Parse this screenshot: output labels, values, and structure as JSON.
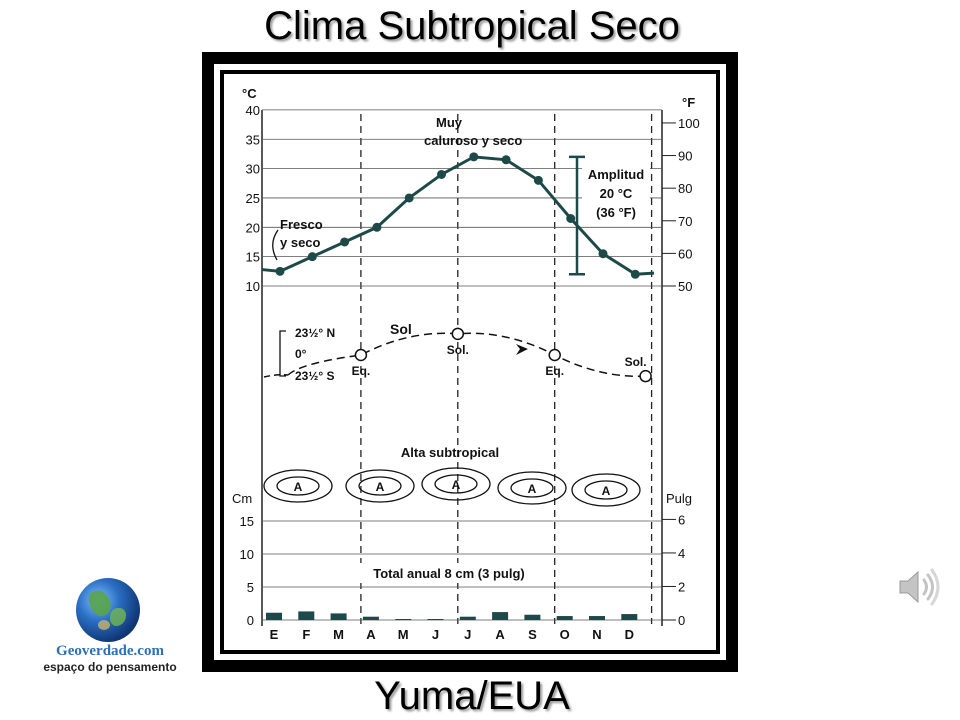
{
  "slide": {
    "title": "Clima Subtropical Seco",
    "caption": "Yuma/EUA"
  },
  "logo": {
    "name": "Geoverdade.com",
    "tagline": "espaço do pensamento"
  },
  "icons": {
    "globe": "globe-icon",
    "speaker": "speaker-icon"
  },
  "colors": {
    "line": "#1d4a48",
    "bars": "#1d4a48",
    "frame": "#000000",
    "title_shadow": "#9a9a9a"
  },
  "chart_data": {
    "type": "line",
    "months": [
      "E",
      "F",
      "M",
      "A",
      "M",
      "J",
      "J",
      "A",
      "S",
      "O",
      "N",
      "D"
    ],
    "temperature": {
      "unit": "°C",
      "alt_unit": "°F",
      "values": [
        12.5,
        15,
        17.5,
        20,
        25,
        29,
        32,
        31.5,
        28,
        21.5,
        15.5,
        12
      ],
      "ticks_c": [
        40,
        35,
        30,
        25,
        20,
        15,
        10
      ],
      "ticks_f": [
        100,
        90,
        80,
        70,
        60,
        50
      ],
      "ylim_c": [
        10,
        40
      ]
    },
    "precipitation": {
      "unit": "Cm",
      "alt_unit": "Pulg",
      "values": [
        1.1,
        1.3,
        1.0,
        0.5,
        0.1,
        0.05,
        0.5,
        1.2,
        0.8,
        0.6,
        0.6,
        0.9
      ],
      "ticks_cm": [
        15,
        10,
        5,
        0
      ],
      "ticks_in": [
        6,
        4,
        2,
        0
      ],
      "ylim_cm": [
        0,
        18
      ]
    },
    "sun": {
      "label": "Sol",
      "lat_labels": [
        "23½° N",
        "0°",
        "23½° S"
      ],
      "points": [
        {
          "month_pos": 3,
          "label": "Eq.",
          "lat": 0
        },
        {
          "month_pos": 6,
          "label": "Sol.",
          "lat": 23.5
        },
        {
          "month_pos": 9,
          "label": "Eq.",
          "lat": 0
        },
        {
          "month_pos": 12,
          "label": "Sol.",
          "lat": -23.5
        }
      ]
    },
    "annotations": {
      "dry_cool": [
        "Fresco",
        "y seco"
      ],
      "hot_dry": [
        "Muy",
        "caluroso y seco"
      ],
      "amplitude": [
        "Amplitud",
        "20 °C",
        "(36 °F)"
      ],
      "pressure": "Alta subtropical",
      "pressure_cells": [
        "A",
        "A",
        "A",
        "A",
        "A"
      ],
      "total": "Total anual 8 cm (3 pulg)"
    }
  }
}
